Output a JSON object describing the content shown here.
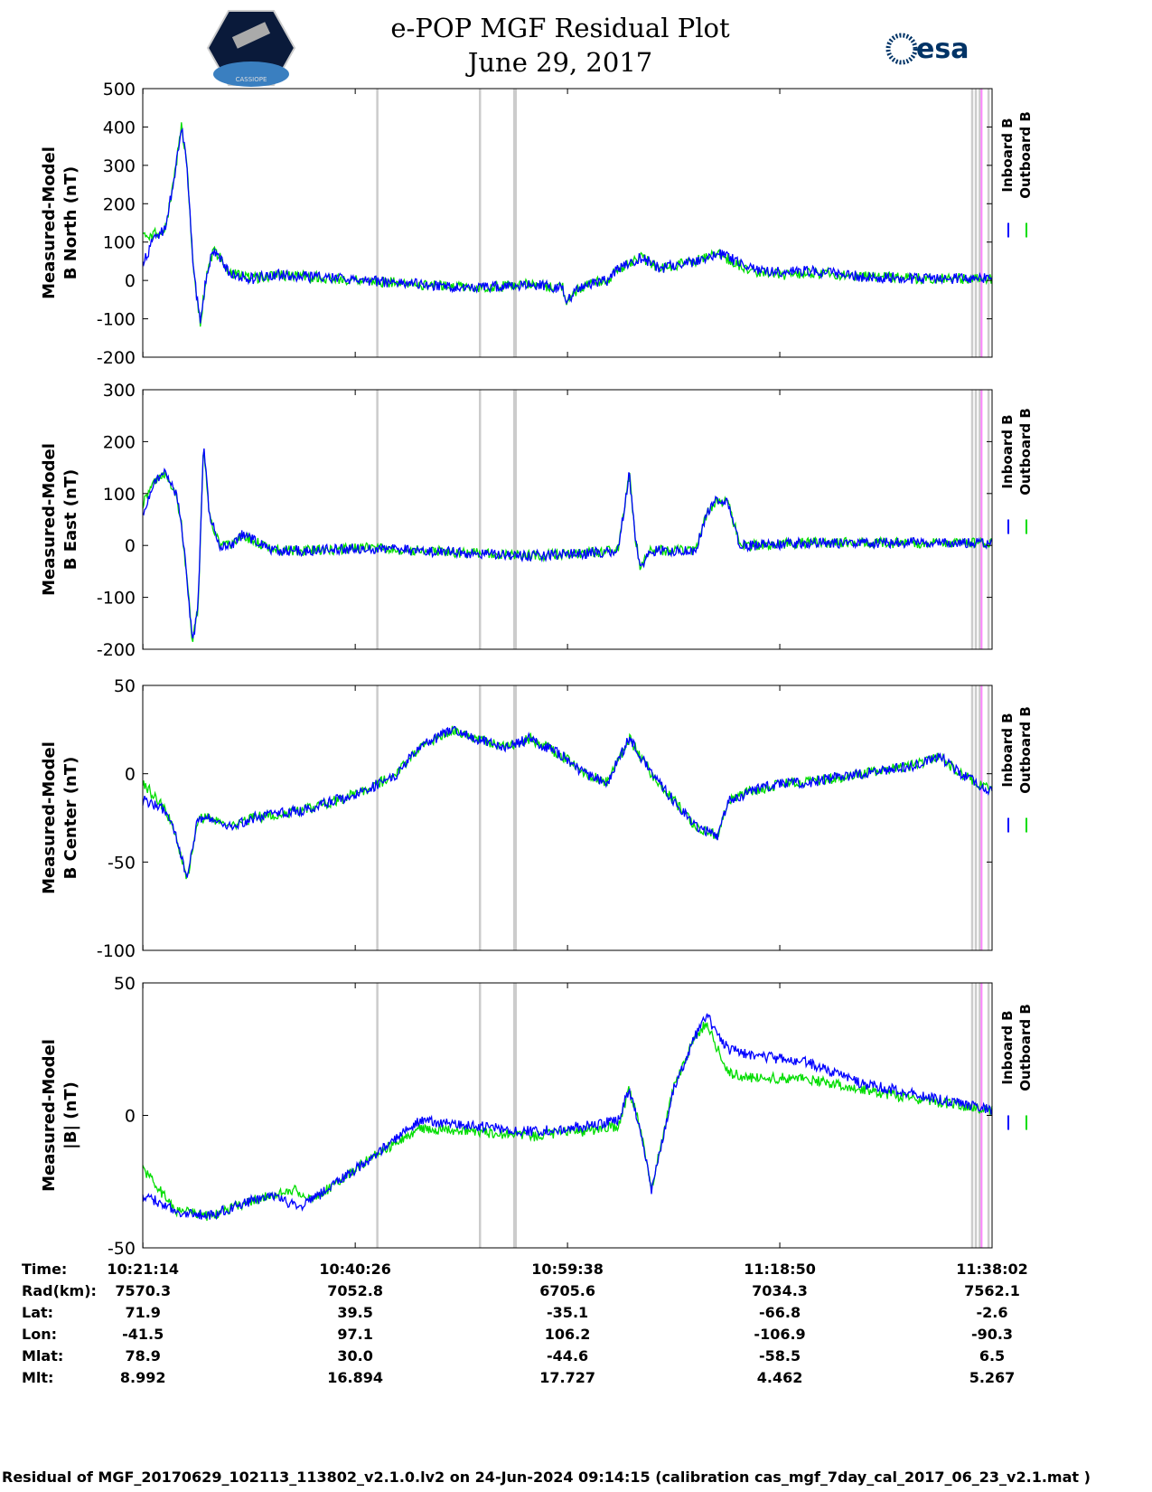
{
  "title": {
    "line1": "e-POP MGF Residual Plot",
    "line2": "June 29, 2017"
  },
  "logos": {
    "left_text": "CASSIOPE",
    "right_text": "esa"
  },
  "colors": {
    "inboard": "#0000ff",
    "outboard": "#00dd00",
    "gray_marker": "#cccccc",
    "pink_marker": "#ff88ff"
  },
  "legend": {
    "inboard": "Inboard B",
    "outboard": "Outboard B"
  },
  "markers": {
    "gray": [
      "10:42:26",
      "10:51:43",
      "10:54:49",
      "10:54:57",
      "11:36:14",
      "11:36:34",
      "11:36:55",
      "11:37:43"
    ],
    "pink": [
      "11:37:05"
    ]
  },
  "info_table": {
    "labels": [
      "Time:",
      "Rad(km):",
      "Lat:",
      "Lon:",
      "Mlat:",
      "Mlt:"
    ],
    "columns": [
      [
        "10:21:14",
        "7570.3",
        "71.9",
        "-41.5",
        "78.9",
        "8.992"
      ],
      [
        "10:40:26",
        "7052.8",
        "39.5",
        "97.1",
        "30.0",
        "16.894"
      ],
      [
        "10:59:38",
        "6705.6",
        "-35.1",
        "106.2",
        "-44.6",
        "17.727"
      ],
      [
        "11:18:50",
        "7034.3",
        "-66.8",
        "-106.9",
        "-58.5",
        "4.462"
      ],
      [
        "11:38:02",
        "7562.1",
        "-2.6",
        "-90.3",
        "6.5",
        "5.267"
      ]
    ]
  },
  "footer": "Residual of MGF_20170629_102113_113802_v2.1.0.lv2 on 24-Jun-2024 09:14:15 (calibration cas_mgf_7day_cal_2017_06_23_v2.1.mat )",
  "chart_data": [
    {
      "type": "line",
      "ylabel": [
        "Measured-Model",
        "B North (nT)"
      ],
      "xlim": [
        "10:21:13",
        "11:38:02"
      ],
      "ylim": [
        -200,
        500
      ],
      "yticks": [
        500,
        400,
        300,
        200,
        100,
        0,
        -100,
        -200
      ],
      "x_minutes": [
        0,
        1,
        2,
        2.8,
        3.5,
        4,
        4.6,
        5.2,
        5.8,
        6.4,
        7,
        7.5,
        8,
        9,
        10,
        12,
        15,
        20,
        25,
        30,
        35,
        38,
        38.2,
        40,
        42,
        43,
        45,
        47,
        48,
        50,
        52,
        53,
        55,
        58,
        60,
        62,
        65,
        70,
        76.8
      ],
      "series": [
        {
          "name": "Inboard B",
          "values": [
            40,
            110,
            130,
            260,
            400,
            300,
            20,
            -110,
            20,
            80,
            60,
            30,
            20,
            10,
            5,
            15,
            10,
            0,
            -10,
            -20,
            -10,
            -20,
            -55,
            -10,
            0,
            30,
            60,
            30,
            40,
            50,
            70,
            60,
            30,
            20,
            25,
            20,
            10,
            5,
            5
          ]
        },
        {
          "name": "Outboard B",
          "values": [
            110,
            120,
            130,
            260,
            400,
            300,
            20,
            -110,
            20,
            80,
            60,
            30,
            20,
            10,
            5,
            15,
            10,
            0,
            -10,
            -20,
            -10,
            -20,
            -55,
            -10,
            0,
            30,
            60,
            30,
            40,
            50,
            70,
            55,
            25,
            15,
            20,
            18,
            10,
            5,
            5
          ]
        }
      ]
    },
    {
      "type": "line",
      "ylabel": [
        "Measured-Model",
        "B East (nT)"
      ],
      "xlim": [
        "10:21:13",
        "11:38:02"
      ],
      "ylim": [
        -200,
        300
      ],
      "yticks": [
        300,
        200,
        100,
        0,
        -100,
        -200
      ],
      "x_minutes": [
        0,
        1,
        2,
        3,
        3.5,
        4,
        4.5,
        5,
        5.5,
        6,
        7,
        8,
        9,
        10,
        12,
        15,
        20,
        25,
        30,
        35,
        40,
        43,
        44,
        44.5,
        45,
        46,
        48,
        50,
        51,
        52,
        53,
        54,
        55,
        60,
        65,
        70,
        76.8
      ],
      "series": [
        {
          "name": "Inboard B",
          "values": [
            60,
            120,
            140,
            100,
            40,
            -60,
            -190,
            -120,
            200,
            60,
            0,
            0,
            20,
            10,
            -10,
            -10,
            -5,
            -10,
            -15,
            -20,
            -15,
            -10,
            140,
            20,
            -40,
            -10,
            -10,
            -10,
            60,
            90,
            80,
            0,
            0,
            5,
            5,
            5,
            5
          ]
        },
        {
          "name": "Outboard B",
          "values": [
            80,
            120,
            140,
            100,
            40,
            -60,
            -190,
            -120,
            200,
            60,
            0,
            0,
            20,
            10,
            -10,
            -10,
            -5,
            -10,
            -15,
            -20,
            -15,
            -10,
            140,
            20,
            -40,
            -10,
            -10,
            -10,
            60,
            90,
            80,
            0,
            0,
            5,
            5,
            5,
            5
          ]
        }
      ]
    },
    {
      "type": "line",
      "ylabel": [
        "Measured-Model",
        "B Center (nT)"
      ],
      "xlim": [
        "10:21:13",
        "11:38:02"
      ],
      "ylim": [
        -100,
        50
      ],
      "yticks": [
        50,
        0,
        -50,
        -100
      ],
      "x_minutes": [
        0,
        2,
        3,
        4,
        5,
        6,
        8,
        10,
        15,
        20,
        23,
        25,
        28,
        30,
        33,
        35,
        38,
        40,
        42,
        44,
        46,
        48,
        50,
        52,
        53,
        55,
        58,
        60,
        65,
        70,
        72,
        74,
        76.8
      ],
      "series": [
        {
          "name": "Inboard B",
          "values": [
            -15,
            -20,
            -35,
            -60,
            -25,
            -25,
            -30,
            -25,
            -20,
            -10,
            0,
            15,
            25,
            20,
            15,
            20,
            10,
            0,
            -5,
            20,
            0,
            -15,
            -30,
            -35,
            -15,
            -10,
            -5,
            -5,
            0,
            5,
            10,
            0,
            -10
          ]
        },
        {
          "name": "Outboard B",
          "values": [
            -5,
            -20,
            -35,
            -60,
            -25,
            -25,
            -30,
            -25,
            -20,
            -10,
            0,
            15,
            25,
            20,
            15,
            20,
            10,
            0,
            -5,
            20,
            0,
            -15,
            -30,
            -35,
            -15,
            -10,
            -5,
            -5,
            0,
            5,
            10,
            0,
            -10
          ]
        }
      ]
    },
    {
      "type": "line",
      "ylabel": [
        "Measured-Model",
        "|B| (nT)"
      ],
      "xlim": [
        "10:21:13",
        "11:38:02"
      ],
      "ylim": [
        -50,
        50
      ],
      "yticks": [
        50,
        0,
        -50
      ],
      "x_minutes": [
        0,
        3,
        6,
        10,
        12,
        14,
        15,
        16,
        20,
        25,
        30,
        35,
        40,
        43,
        44,
        45,
        46,
        48,
        50,
        51,
        52,
        53,
        55,
        60,
        65,
        70,
        76.8
      ],
      "series": [
        {
          "name": "Inboard B",
          "values": [
            -30,
            -36,
            -38,
            -32,
            -30,
            -35,
            -32,
            -30,
            -18,
            -2,
            -4,
            -6,
            -4,
            -2,
            10,
            -5,
            -28,
            10,
            30,
            38,
            30,
            25,
            23,
            20,
            12,
            8,
            2
          ]
        },
        {
          "name": "Outboard B",
          "values": [
            -20,
            -36,
            -38,
            -32,
            -30,
            -28,
            -32,
            -30,
            -18,
            -5,
            -6,
            -8,
            -6,
            -4,
            10,
            -5,
            -28,
            10,
            30,
            35,
            25,
            16,
            14,
            14,
            10,
            6,
            2
          ]
        }
      ]
    }
  ]
}
